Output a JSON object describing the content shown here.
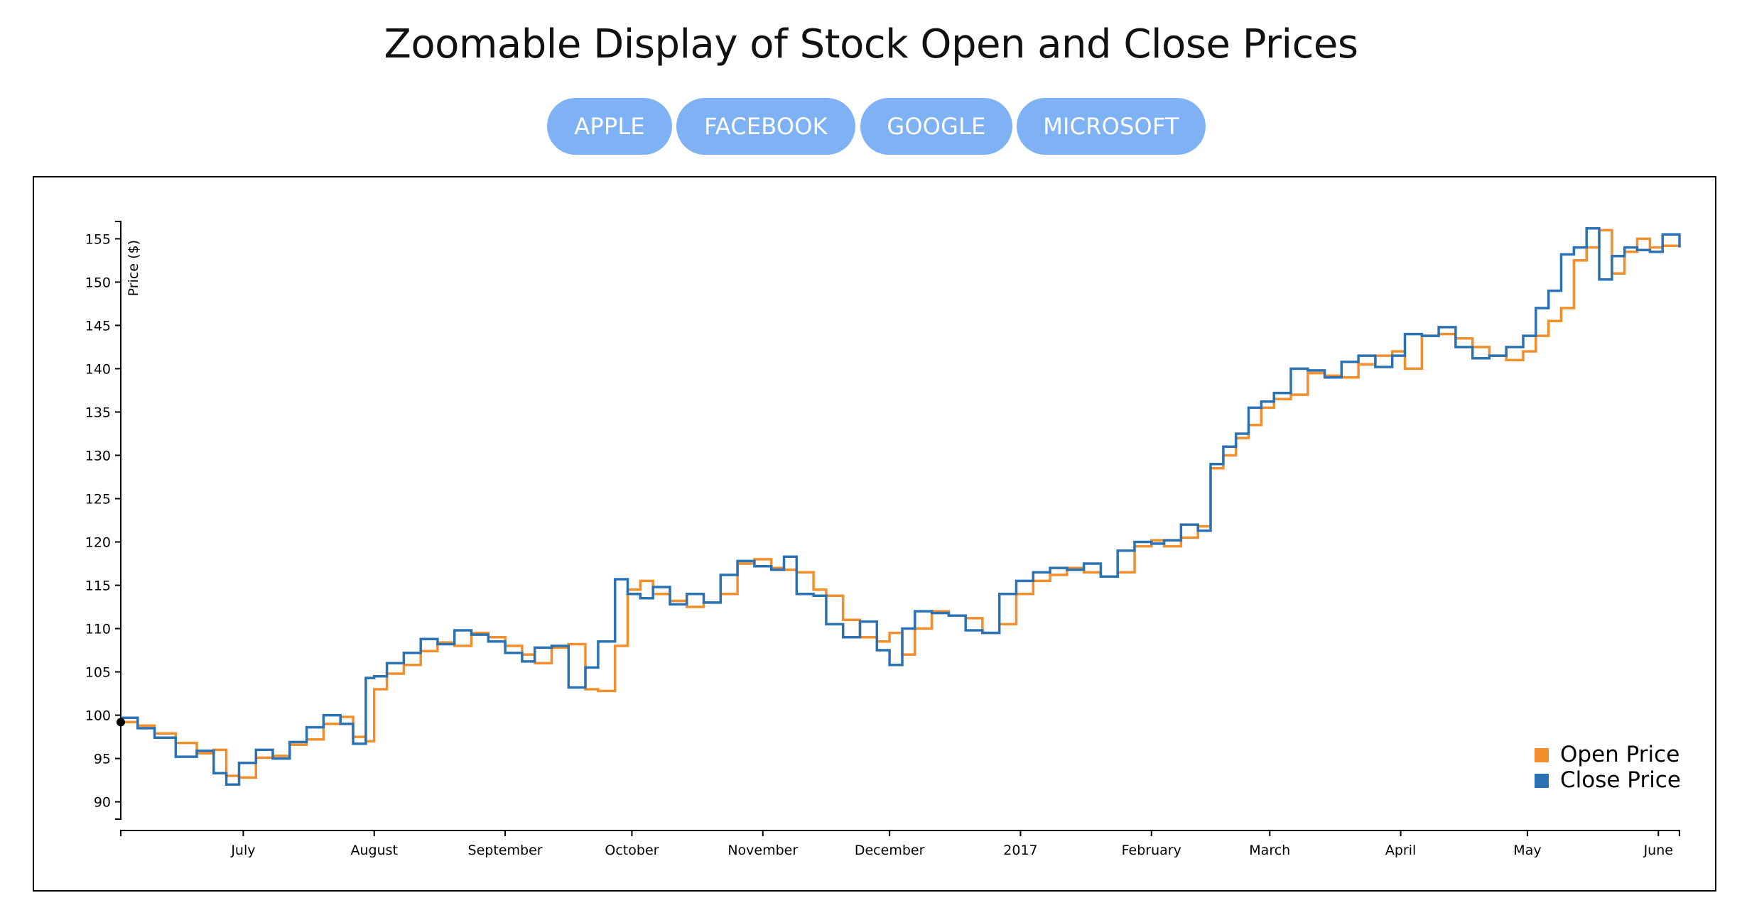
{
  "title": "Zoomable Display of Stock Open and Close Prices",
  "buttons": [
    {
      "label": "APPLE"
    },
    {
      "label": "FACEBOOK"
    },
    {
      "label": "GOOGLE"
    },
    {
      "label": "MICROSOFT"
    }
  ],
  "colors": {
    "open": "#f28e2b",
    "close": "#2b72b4",
    "button": "#7fb2f5"
  },
  "chart_data": {
    "type": "line",
    "step": true,
    "ylabel": "Price ($)",
    "ylim": [
      88,
      157
    ],
    "yticks": [
      90,
      95,
      100,
      105,
      110,
      115,
      120,
      125,
      130,
      135,
      140,
      145,
      150,
      155
    ],
    "xlim": [
      "2016-06-02",
      "2017-06-06"
    ],
    "xticks": [
      {
        "date": "2016-07-01",
        "label": "July"
      },
      {
        "date": "2016-08-01",
        "label": "August"
      },
      {
        "date": "2016-09-01",
        "label": "September"
      },
      {
        "date": "2016-10-01",
        "label": "October"
      },
      {
        "date": "2016-11-01",
        "label": "November"
      },
      {
        "date": "2016-12-01",
        "label": "December"
      },
      {
        "date": "2017-01-01",
        "label": "2017"
      },
      {
        "date": "2017-02-01",
        "label": "February"
      },
      {
        "date": "2017-03-01",
        "label": "March"
      },
      {
        "date": "2017-04-01",
        "label": "April"
      },
      {
        "date": "2017-05-01",
        "label": "May"
      },
      {
        "date": "2017-06-01",
        "label": "June"
      }
    ],
    "legend": "bottom-right",
    "series": [
      {
        "name": "Open Price",
        "points": [
          [
            "2016-06-02",
            99.2
          ],
          [
            "2016-06-06",
            98.8
          ],
          [
            "2016-06-10",
            97.9
          ],
          [
            "2016-06-15",
            96.8
          ],
          [
            "2016-06-20",
            95.6
          ],
          [
            "2016-06-24",
            96.0
          ],
          [
            "2016-06-27",
            93.0
          ],
          [
            "2016-06-30",
            92.8
          ],
          [
            "2016-07-04",
            95.1
          ],
          [
            "2016-07-08",
            95.3
          ],
          [
            "2016-07-12",
            96.6
          ],
          [
            "2016-07-16",
            97.2
          ],
          [
            "2016-07-20",
            99.0
          ],
          [
            "2016-07-24",
            99.8
          ],
          [
            "2016-07-27",
            97.5
          ],
          [
            "2016-07-30",
            97.0
          ],
          [
            "2016-08-01",
            103.0
          ],
          [
            "2016-08-04",
            104.8
          ],
          [
            "2016-08-08",
            105.8
          ],
          [
            "2016-08-12",
            107.4
          ],
          [
            "2016-08-16",
            108.4
          ],
          [
            "2016-08-20",
            108.0
          ],
          [
            "2016-08-24",
            109.5
          ],
          [
            "2016-08-28",
            109.0
          ],
          [
            "2016-09-01",
            108.0
          ],
          [
            "2016-09-05",
            107.0
          ],
          [
            "2016-09-08",
            106.0
          ],
          [
            "2016-09-12",
            107.8
          ],
          [
            "2016-09-16",
            108.2
          ],
          [
            "2016-09-20",
            103.0
          ],
          [
            "2016-09-23",
            102.8
          ],
          [
            "2016-09-27",
            108.0
          ],
          [
            "2016-09-30",
            114.5
          ],
          [
            "2016-10-03",
            115.5
          ],
          [
            "2016-10-06",
            114.0
          ],
          [
            "2016-10-10",
            113.2
          ],
          [
            "2016-10-14",
            112.5
          ],
          [
            "2016-10-18",
            113.0
          ],
          [
            "2016-10-22",
            114.0
          ],
          [
            "2016-10-26",
            117.5
          ],
          [
            "2016-10-30",
            118.0
          ],
          [
            "2016-11-03",
            117.0
          ],
          [
            "2016-11-06",
            116.8
          ],
          [
            "2016-11-09",
            116.5
          ],
          [
            "2016-11-13",
            114.5
          ],
          [
            "2016-11-16",
            113.8
          ],
          [
            "2016-11-20",
            111.0
          ],
          [
            "2016-11-24",
            109.0
          ],
          [
            "2016-11-28",
            108.5
          ],
          [
            "2016-12-01",
            109.5
          ],
          [
            "2016-12-04",
            107.0
          ],
          [
            "2016-12-07",
            110.0
          ],
          [
            "2016-12-11",
            112.0
          ],
          [
            "2016-12-15",
            111.5
          ],
          [
            "2016-12-19",
            111.2
          ],
          [
            "2016-12-23",
            109.5
          ],
          [
            "2016-12-27",
            110.5
          ],
          [
            "2016-12-31",
            114.0
          ],
          [
            "2017-01-04",
            115.5
          ],
          [
            "2017-01-08",
            116.2
          ],
          [
            "2017-01-12",
            117.0
          ],
          [
            "2017-01-16",
            116.5
          ],
          [
            "2017-01-20",
            116.0
          ],
          [
            "2017-01-24",
            116.5
          ],
          [
            "2017-01-28",
            119.5
          ],
          [
            "2017-02-01",
            120.2
          ],
          [
            "2017-02-04",
            119.5
          ],
          [
            "2017-02-08",
            120.5
          ],
          [
            "2017-02-12",
            121.8
          ],
          [
            "2017-02-15",
            128.5
          ],
          [
            "2017-02-18",
            130.0
          ],
          [
            "2017-02-21",
            132.0
          ],
          [
            "2017-02-24",
            133.5
          ],
          [
            "2017-02-27",
            135.5
          ],
          [
            "2017-03-02",
            136.5
          ],
          [
            "2017-03-06",
            137.0
          ],
          [
            "2017-03-10",
            139.5
          ],
          [
            "2017-03-14",
            139.2
          ],
          [
            "2017-03-18",
            139.0
          ],
          [
            "2017-03-22",
            140.5
          ],
          [
            "2017-03-26",
            141.5
          ],
          [
            "2017-03-30",
            142.0
          ],
          [
            "2017-04-02",
            140.0
          ],
          [
            "2017-04-06",
            143.8
          ],
          [
            "2017-04-10",
            144.0
          ],
          [
            "2017-04-14",
            143.5
          ],
          [
            "2017-04-18",
            142.5
          ],
          [
            "2017-04-22",
            141.5
          ],
          [
            "2017-04-26",
            141.0
          ],
          [
            "2017-04-30",
            142.0
          ],
          [
            "2017-05-03",
            143.8
          ],
          [
            "2017-05-06",
            145.5
          ],
          [
            "2017-05-09",
            147.0
          ],
          [
            "2017-05-12",
            152.5
          ],
          [
            "2017-05-15",
            154.0
          ],
          [
            "2017-05-18",
            156.0
          ],
          [
            "2017-05-21",
            151.0
          ],
          [
            "2017-05-24",
            153.5
          ],
          [
            "2017-05-27",
            155.0
          ],
          [
            "2017-05-30",
            154.0
          ],
          [
            "2017-06-02",
            154.2
          ],
          [
            "2017-06-06",
            154.3
          ]
        ]
      },
      {
        "name": "Close Price",
        "points": [
          [
            "2016-06-02",
            99.7
          ],
          [
            "2016-06-06",
            98.5
          ],
          [
            "2016-06-10",
            97.4
          ],
          [
            "2016-06-15",
            95.2
          ],
          [
            "2016-06-20",
            95.9
          ],
          [
            "2016-06-24",
            93.3
          ],
          [
            "2016-06-27",
            92.0
          ],
          [
            "2016-06-30",
            94.5
          ],
          [
            "2016-07-04",
            96.0
          ],
          [
            "2016-07-08",
            95.0
          ],
          [
            "2016-07-12",
            96.9
          ],
          [
            "2016-07-16",
            98.6
          ],
          [
            "2016-07-20",
            100.0
          ],
          [
            "2016-07-24",
            99.0
          ],
          [
            "2016-07-27",
            96.7
          ],
          [
            "2016-07-30",
            104.3
          ],
          [
            "2016-08-01",
            104.5
          ],
          [
            "2016-08-04",
            106.0
          ],
          [
            "2016-08-08",
            107.2
          ],
          [
            "2016-08-12",
            108.8
          ],
          [
            "2016-08-16",
            108.2
          ],
          [
            "2016-08-20",
            109.8
          ],
          [
            "2016-08-24",
            109.3
          ],
          [
            "2016-08-28",
            108.5
          ],
          [
            "2016-09-01",
            107.2
          ],
          [
            "2016-09-05",
            106.2
          ],
          [
            "2016-09-08",
            107.8
          ],
          [
            "2016-09-12",
            108.0
          ],
          [
            "2016-09-16",
            103.2
          ],
          [
            "2016-09-20",
            105.5
          ],
          [
            "2016-09-23",
            108.5
          ],
          [
            "2016-09-27",
            115.7
          ],
          [
            "2016-09-30",
            114.0
          ],
          [
            "2016-10-03",
            113.5
          ],
          [
            "2016-10-06",
            114.8
          ],
          [
            "2016-10-10",
            112.8
          ],
          [
            "2016-10-14",
            114.0
          ],
          [
            "2016-10-18",
            113.0
          ],
          [
            "2016-10-22",
            116.2
          ],
          [
            "2016-10-26",
            117.8
          ],
          [
            "2016-10-30",
            117.2
          ],
          [
            "2016-11-03",
            116.8
          ],
          [
            "2016-11-06",
            118.3
          ],
          [
            "2016-11-09",
            114.0
          ],
          [
            "2016-11-13",
            113.8
          ],
          [
            "2016-11-16",
            110.5
          ],
          [
            "2016-11-20",
            109.0
          ],
          [
            "2016-11-24",
            110.8
          ],
          [
            "2016-11-28",
            107.5
          ],
          [
            "2016-12-01",
            105.8
          ],
          [
            "2016-12-04",
            110.0
          ],
          [
            "2016-12-07",
            112.0
          ],
          [
            "2016-12-11",
            111.8
          ],
          [
            "2016-12-15",
            111.5
          ],
          [
            "2016-12-19",
            109.8
          ],
          [
            "2016-12-23",
            109.5
          ],
          [
            "2016-12-27",
            114.0
          ],
          [
            "2016-12-31",
            115.5
          ],
          [
            "2017-01-04",
            116.5
          ],
          [
            "2017-01-08",
            117.0
          ],
          [
            "2017-01-12",
            116.8
          ],
          [
            "2017-01-16",
            117.5
          ],
          [
            "2017-01-20",
            116.0
          ],
          [
            "2017-01-24",
            119.0
          ],
          [
            "2017-01-28",
            120.0
          ],
          [
            "2017-02-01",
            119.8
          ],
          [
            "2017-02-04",
            120.2
          ],
          [
            "2017-02-08",
            122.0
          ],
          [
            "2017-02-12",
            121.3
          ],
          [
            "2017-02-15",
            129.0
          ],
          [
            "2017-02-18",
            131.0
          ],
          [
            "2017-02-21",
            132.5
          ],
          [
            "2017-02-24",
            135.5
          ],
          [
            "2017-02-27",
            136.2
          ],
          [
            "2017-03-02",
            137.2
          ],
          [
            "2017-03-06",
            140.0
          ],
          [
            "2017-03-10",
            139.8
          ],
          [
            "2017-03-14",
            139.0
          ],
          [
            "2017-03-18",
            140.8
          ],
          [
            "2017-03-22",
            141.5
          ],
          [
            "2017-03-26",
            140.2
          ],
          [
            "2017-03-30",
            141.5
          ],
          [
            "2017-04-02",
            144.0
          ],
          [
            "2017-04-06",
            143.8
          ],
          [
            "2017-04-10",
            144.8
          ],
          [
            "2017-04-14",
            142.5
          ],
          [
            "2017-04-18",
            141.2
          ],
          [
            "2017-04-22",
            141.5
          ],
          [
            "2017-04-26",
            142.5
          ],
          [
            "2017-04-30",
            143.8
          ],
          [
            "2017-05-03",
            147.0
          ],
          [
            "2017-05-06",
            149.0
          ],
          [
            "2017-05-09",
            153.2
          ],
          [
            "2017-05-12",
            154.0
          ],
          [
            "2017-05-15",
            156.2
          ],
          [
            "2017-05-18",
            150.3
          ],
          [
            "2017-05-21",
            153.0
          ],
          [
            "2017-05-24",
            154.0
          ],
          [
            "2017-05-27",
            153.7
          ],
          [
            "2017-05-30",
            153.5
          ],
          [
            "2017-06-02",
            155.5
          ],
          [
            "2017-06-06",
            154.0
          ]
        ]
      }
    ]
  }
}
